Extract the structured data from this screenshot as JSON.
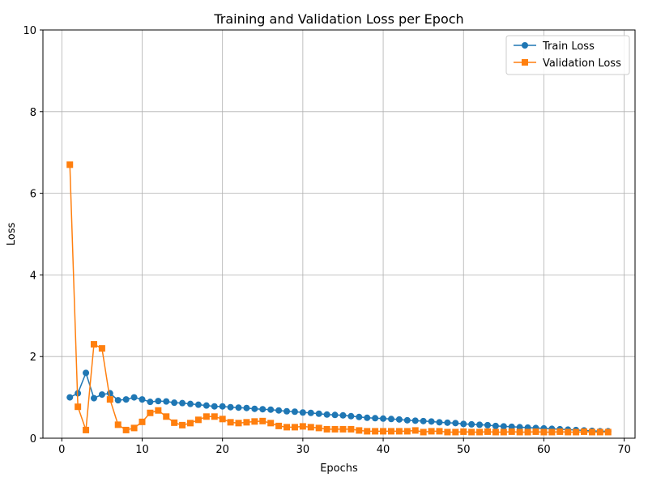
{
  "chart_data": {
    "type": "line",
    "title": "Training and Validation Loss per Epoch",
    "xlabel": "Epochs",
    "ylabel": "Loss",
    "xlim": [
      -2.35,
      71.35
    ],
    "ylim": [
      0,
      10
    ],
    "x_ticks": [
      0,
      10,
      20,
      30,
      40,
      50,
      60,
      70
    ],
    "y_ticks": [
      0,
      2,
      4,
      6,
      8,
      10
    ],
    "grid": true,
    "legend_position": "top-right",
    "x": [
      1,
      2,
      3,
      4,
      5,
      6,
      7,
      8,
      9,
      10,
      11,
      12,
      13,
      14,
      15,
      16,
      17,
      18,
      19,
      20,
      21,
      22,
      23,
      24,
      25,
      26,
      27,
      28,
      29,
      30,
      31,
      32,
      33,
      34,
      35,
      36,
      37,
      38,
      39,
      40,
      41,
      42,
      43,
      44,
      45,
      46,
      47,
      48,
      49,
      50,
      51,
      52,
      53,
      54,
      55,
      56,
      57,
      58,
      59,
      60,
      61,
      62,
      63,
      64,
      65,
      66,
      67,
      68
    ],
    "series": [
      {
        "name": "Train Loss",
        "color": "#1f77b4",
        "marker": "circle",
        "values": [
          1.0,
          1.1,
          1.6,
          0.98,
          1.07,
          1.1,
          0.93,
          0.95,
          1.0,
          0.95,
          0.89,
          0.91,
          0.9,
          0.87,
          0.86,
          0.84,
          0.82,
          0.8,
          0.78,
          0.78,
          0.76,
          0.75,
          0.74,
          0.72,
          0.71,
          0.7,
          0.68,
          0.66,
          0.65,
          0.63,
          0.62,
          0.6,
          0.58,
          0.57,
          0.56,
          0.54,
          0.52,
          0.5,
          0.49,
          0.48,
          0.47,
          0.46,
          0.44,
          0.43,
          0.42,
          0.41,
          0.39,
          0.38,
          0.37,
          0.35,
          0.34,
          0.33,
          0.32,
          0.3,
          0.29,
          0.28,
          0.27,
          0.26,
          0.25,
          0.24,
          0.23,
          0.22,
          0.21,
          0.2,
          0.19,
          0.18,
          0.17,
          0.17
        ]
      },
      {
        "name": "Validation Loss",
        "color": "#ff7f0e",
        "marker": "square",
        "values": [
          6.7,
          0.77,
          0.2,
          2.3,
          2.2,
          0.95,
          0.33,
          0.2,
          0.25,
          0.4,
          0.62,
          0.68,
          0.53,
          0.38,
          0.32,
          0.37,
          0.45,
          0.53,
          0.53,
          0.47,
          0.39,
          0.37,
          0.39,
          0.41,
          0.42,
          0.37,
          0.3,
          0.27,
          0.27,
          0.29,
          0.27,
          0.25,
          0.22,
          0.22,
          0.22,
          0.22,
          0.19,
          0.17,
          0.17,
          0.17,
          0.17,
          0.17,
          0.17,
          0.19,
          0.15,
          0.17,
          0.17,
          0.15,
          0.15,
          0.16,
          0.15,
          0.15,
          0.16,
          0.15,
          0.15,
          0.16,
          0.15,
          0.15,
          0.16,
          0.15,
          0.15,
          0.16,
          0.15,
          0.15,
          0.16,
          0.15,
          0.15,
          0.15
        ]
      }
    ]
  }
}
